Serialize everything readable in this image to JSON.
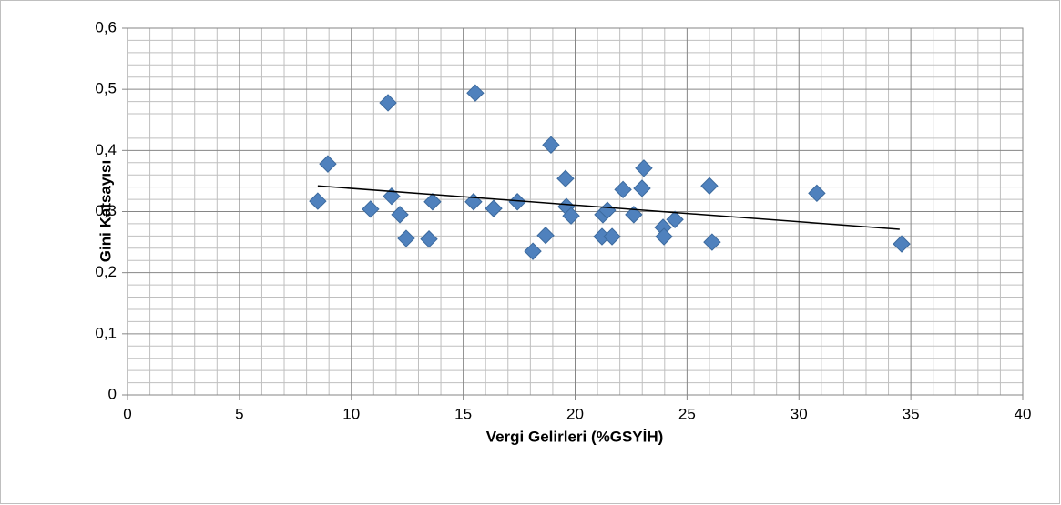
{
  "chart_data": {
    "type": "scatter",
    "x_label": "Vergi Gelirleri (%GSYİH)",
    "y_label": "Gini Katsayısı",
    "color": "#4f81bd",
    "x": [
      8.5,
      8.95,
      10.86,
      11.64,
      11.8,
      12.17,
      12.45,
      13.47,
      13.63,
      15.46,
      15.54,
      16.36,
      17.42,
      18.11,
      18.68,
      18.92,
      19.57,
      19.61,
      19.82,
      21.2,
      21.24,
      21.44,
      21.65,
      22.14,
      22.62,
      22.99,
      23.07,
      23.93,
      23.97,
      24.46,
      26.0,
      26.12,
      30.8,
      34.59
    ],
    "values": [
      0.317,
      0.378,
      0.304,
      0.478,
      0.325,
      0.295,
      0.256,
      0.255,
      0.316,
      0.316,
      0.494,
      0.305,
      0.316,
      0.235,
      0.261,
      0.409,
      0.354,
      0.308,
      0.293,
      0.259,
      0.295,
      0.302,
      0.259,
      0.336,
      0.295,
      0.338,
      0.371,
      0.274,
      0.259,
      0.287,
      0.342,
      0.25,
      0.33,
      0.247
    ],
    "trendline": {
      "x": [
        8.5,
        34.5
      ],
      "y": [
        0.342,
        0.271
      ],
      "color": "#000000"
    },
    "xlim": [
      0,
      40
    ],
    "ylim": [
      0,
      0.6
    ],
    "xticks": [
      0,
      5,
      10,
      15,
      20,
      25,
      30,
      35,
      40
    ],
    "yticks": [
      0,
      {
        "value": 0.1,
        "label": "0,1"
      },
      {
        "value": 0.2,
        "label": "0,2"
      },
      {
        "value": 0.3,
        "label": "0,3"
      },
      {
        "value": 0.4,
        "label": "0,4"
      },
      {
        "value": 0.5,
        "label": "0,5"
      },
      {
        "value": 0.6,
        "label": "0,6"
      }
    ],
    "x_minor_ticks": [
      1,
      2,
      3,
      4,
      6,
      7,
      8,
      9,
      11,
      12,
      13,
      14,
      16,
      17,
      18,
      19,
      21,
      22,
      23,
      24,
      26,
      27,
      28,
      29,
      31,
      32,
      33,
      34,
      36,
      37,
      38,
      39
    ],
    "y_minor_ticks": [
      0.02,
      0.04,
      0.06,
      0.08,
      0.12,
      0.14,
      0.16,
      0.18,
      0.22,
      0.24,
      0.26,
      0.28,
      0.32,
      0.34,
      0.36,
      0.38,
      0.42,
      0.44,
      0.46,
      0.48,
      0.52,
      0.54,
      0.56,
      0.58
    ],
    "grid": true
  }
}
